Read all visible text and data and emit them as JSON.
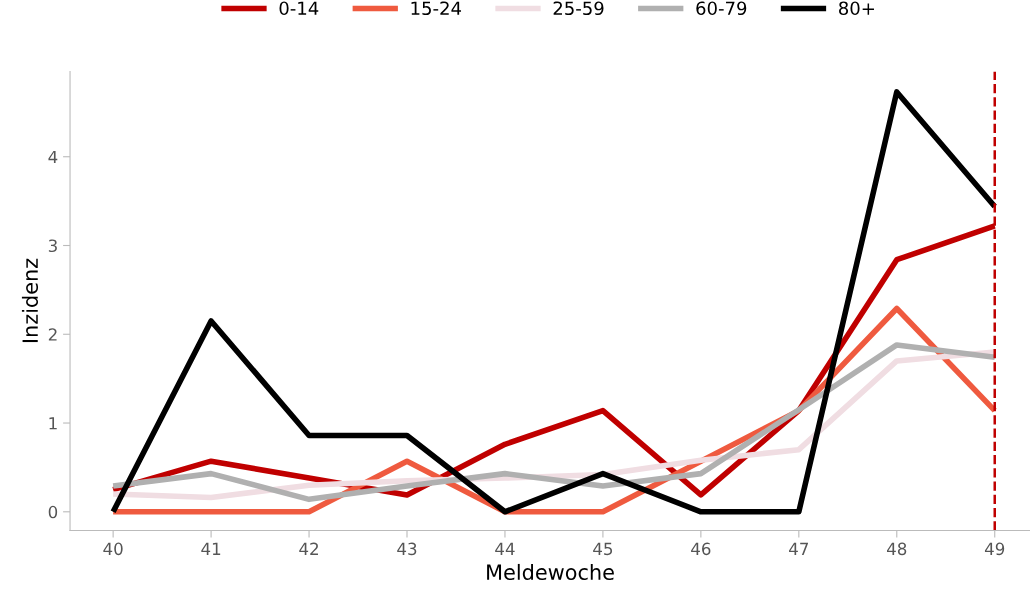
{
  "chart_data": {
    "type": "line",
    "xlabel": "Meldewoche",
    "ylabel": "Inzidenz",
    "x": [
      40,
      41,
      42,
      43,
      44,
      45,
      46,
      47,
      48,
      49
    ],
    "series": [
      {
        "name": "0-14",
        "color": "#c00000",
        "values": [
          0.25,
          0.57,
          0.38,
          0.19,
          0.76,
          1.14,
          0.19,
          1.14,
          2.84,
          3.22
        ]
      },
      {
        "name": "15-24",
        "color": "#ef5a3f",
        "values": [
          0,
          0,
          0,
          0.57,
          0,
          0,
          0.57,
          1.14,
          2.29,
          1.14
        ]
      },
      {
        "name": "25-59",
        "color": "#f0dde2",
        "values": [
          0.2,
          0.16,
          0.3,
          0.35,
          0.38,
          0.42,
          0.58,
          0.7,
          1.7,
          1.8
        ]
      },
      {
        "name": "60-79",
        "color": "#b0b0b0",
        "values": [
          0.29,
          0.43,
          0.14,
          0.29,
          0.43,
          0.29,
          0.43,
          1.15,
          1.88,
          1.74
        ]
      },
      {
        "name": "80+",
        "color": "#000000",
        "values": [
          0,
          2.15,
          0.86,
          0.86,
          0,
          0.43,
          0,
          0,
          4.73,
          3.44
        ]
      }
    ],
    "xlim": [
      39.56,
      49.36
    ],
    "ylim": [
      -0.21,
      4.96
    ],
    "xticks": [
      40,
      41,
      42,
      43,
      44,
      45,
      46,
      47,
      48,
      49
    ],
    "yticks": [
      0,
      1,
      2,
      3,
      4
    ],
    "ref_lines": [
      {
        "axis": "x",
        "value": 49,
        "color": "#c00000",
        "line_style": "dashed"
      }
    ],
    "legend": "top",
    "grid": false,
    "marker": "none",
    "line_style": "solid"
  }
}
